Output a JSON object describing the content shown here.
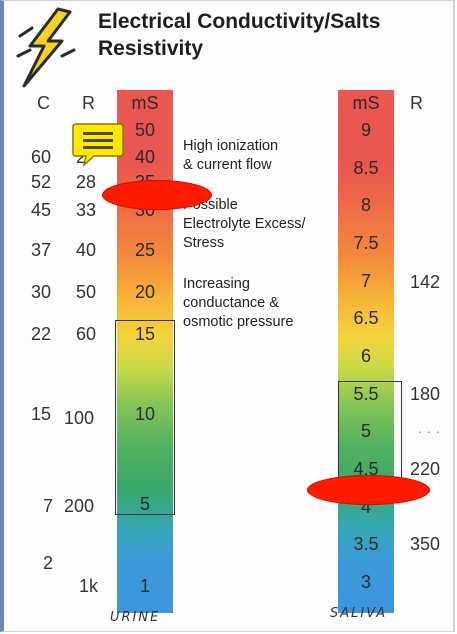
{
  "title": {
    "line1": "Electrical Conductivity/Salts",
    "line2": "Resistivity"
  },
  "left_scale": {
    "headers": {
      "c": "C",
      "r": "R",
      "ms": "mS"
    },
    "c_values": [
      "60",
      "52",
      "45",
      "37",
      "30",
      "22",
      "15",
      "7",
      "2"
    ],
    "r_values": [
      "2",
      "28",
      "33",
      "40",
      "50",
      "60",
      "100",
      "200",
      "1k"
    ],
    "ms_values": [
      "50",
      "40",
      "35",
      "30",
      "25",
      "20",
      "15",
      "10",
      "5",
      "1"
    ],
    "caption": "URINE"
  },
  "right_scale": {
    "headers": {
      "ms": "mS",
      "r": "R"
    },
    "ms_values": [
      "9",
      "8.5",
      "8",
      "7.5",
      "7",
      "6.5",
      "6",
      "5.5",
      "5",
      "4.5",
      "4",
      "3.5",
      "3"
    ],
    "r_values": [
      "142",
      "180",
      "...",
      "220",
      "350"
    ],
    "caption": "SALIVA"
  },
  "descriptions": {
    "high": [
      "High ionization",
      "& current flow"
    ],
    "possible": [
      "Possible",
      "Electrolyte Excess/",
      "Stress"
    ],
    "increasing": [
      "Increasing",
      "conductance &",
      "osmotic pressure"
    ]
  },
  "icons": {
    "logo": "lightning-bolt-icon",
    "note": "sticky-note-icon"
  },
  "colors": {
    "marker": "#ff1a00",
    "bar_top": "#ea5650",
    "bar_bottom": "#3d95dc",
    "note": "#ffe800"
  }
}
